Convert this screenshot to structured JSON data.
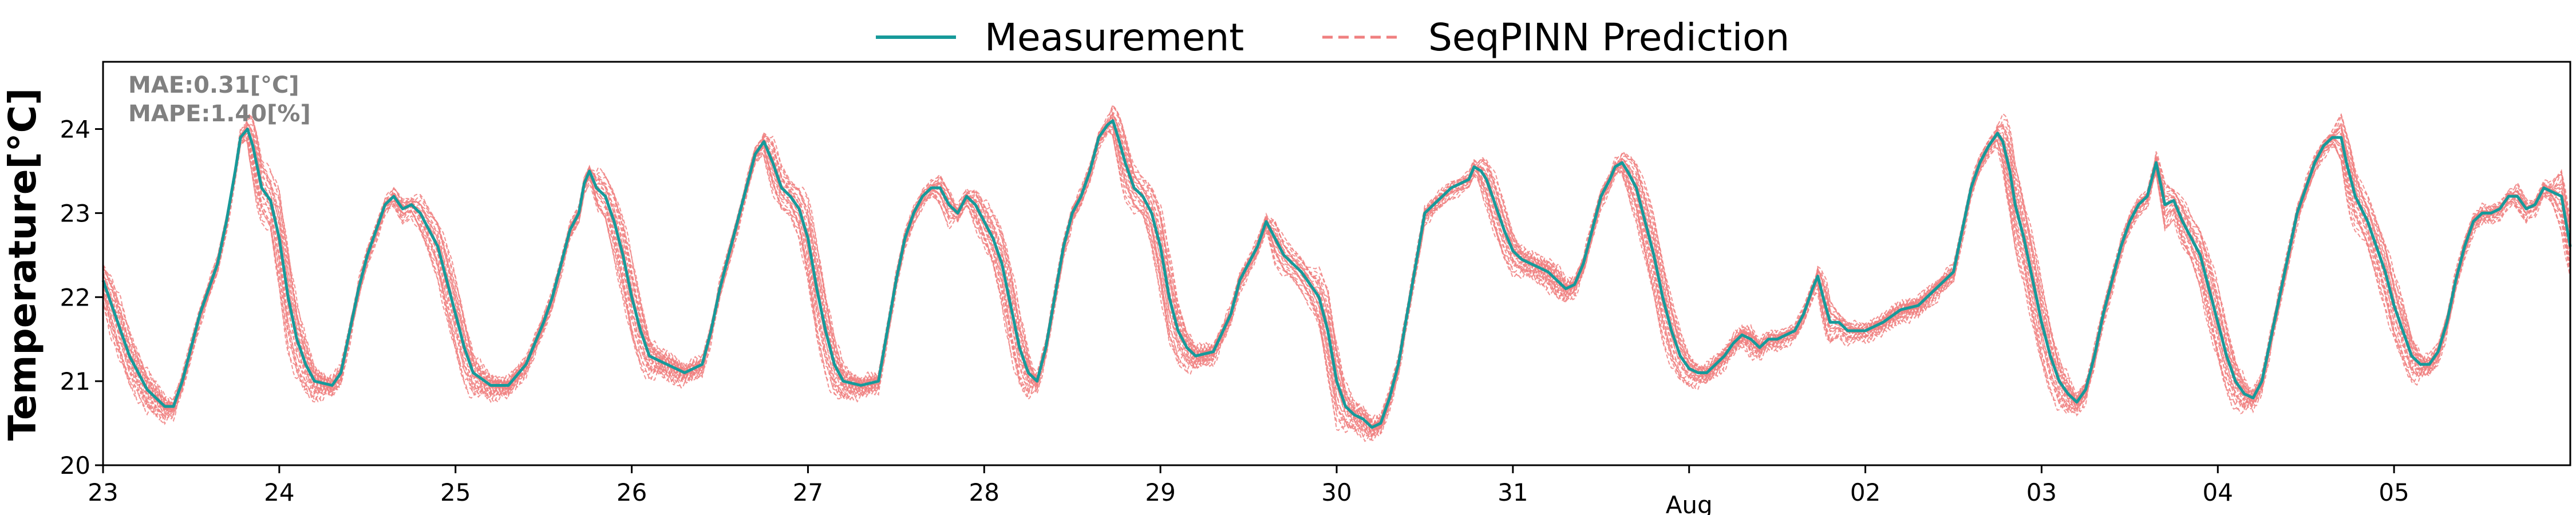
{
  "chart_data": {
    "type": "line",
    "ylabel": "Temperature[°C]",
    "ylim": [
      20,
      24.8
    ],
    "yticks": [
      20,
      21,
      22,
      23,
      24
    ],
    "xlim": [
      0,
      14
    ],
    "x_ticks": [
      {
        "pos": 0,
        "label": "23"
      },
      {
        "pos": 1,
        "label": "24"
      },
      {
        "pos": 2,
        "label": "25"
      },
      {
        "pos": 3,
        "label": "26"
      },
      {
        "pos": 4,
        "label": "27"
      },
      {
        "pos": 5,
        "label": "28"
      },
      {
        "pos": 6,
        "label": "29"
      },
      {
        "pos": 7,
        "label": "30"
      },
      {
        "pos": 8,
        "label": "31"
      },
      {
        "pos": 9,
        "label": "Aug"
      },
      {
        "pos": 10,
        "label": "02"
      },
      {
        "pos": 11,
        "label": "03"
      },
      {
        "pos": 12,
        "label": "04"
      },
      {
        "pos": 13,
        "label": "05"
      }
    ],
    "legend": {
      "placement": "top-center"
    },
    "annotations": {
      "mae": "MAE:0.31[°C]",
      "mape": "MAPE:1.40[%]"
    },
    "grid": false,
    "series": [
      {
        "name": "Measurement",
        "color": "#169a9a",
        "style": "solid",
        "points": [
          [
            0.0,
            22.2
          ],
          [
            0.05,
            21.9
          ],
          [
            0.15,
            21.3
          ],
          [
            0.25,
            20.9
          ],
          [
            0.35,
            20.7
          ],
          [
            0.4,
            20.7
          ],
          [
            0.45,
            21.0
          ],
          [
            0.5,
            21.4
          ],
          [
            0.55,
            21.8
          ],
          [
            0.6,
            22.1
          ],
          [
            0.65,
            22.4
          ],
          [
            0.7,
            22.9
          ],
          [
            0.75,
            23.5
          ],
          [
            0.78,
            23.9
          ],
          [
            0.82,
            24.0
          ],
          [
            0.85,
            23.8
          ],
          [
            0.9,
            23.3
          ],
          [
            0.95,
            23.15
          ],
          [
            1.0,
            22.7
          ],
          [
            1.05,
            22.0
          ],
          [
            1.1,
            21.5
          ],
          [
            1.15,
            21.2
          ],
          [
            1.2,
            21.0
          ],
          [
            1.3,
            20.95
          ],
          [
            1.35,
            21.1
          ],
          [
            1.4,
            21.6
          ],
          [
            1.45,
            22.1
          ],
          [
            1.5,
            22.5
          ],
          [
            1.55,
            22.8
          ],
          [
            1.6,
            23.1
          ],
          [
            1.65,
            23.2
          ],
          [
            1.7,
            23.05
          ],
          [
            1.75,
            23.1
          ],
          [
            1.8,
            23.0
          ],
          [
            1.85,
            22.8
          ],
          [
            1.9,
            22.6
          ],
          [
            1.95,
            22.2
          ],
          [
            2.0,
            21.8
          ],
          [
            2.05,
            21.4
          ],
          [
            2.1,
            21.1
          ],
          [
            2.2,
            20.95
          ],
          [
            2.3,
            20.95
          ],
          [
            2.4,
            21.2
          ],
          [
            2.5,
            21.7
          ],
          [
            2.55,
            22.0
          ],
          [
            2.6,
            22.4
          ],
          [
            2.65,
            22.8
          ],
          [
            2.7,
            23.0
          ],
          [
            2.73,
            23.35
          ],
          [
            2.76,
            23.5
          ],
          [
            2.8,
            23.3
          ],
          [
            2.85,
            23.2
          ],
          [
            2.9,
            22.9
          ],
          [
            2.95,
            22.5
          ],
          [
            3.0,
            22.0
          ],
          [
            3.05,
            21.6
          ],
          [
            3.1,
            21.3
          ],
          [
            3.2,
            21.2
          ],
          [
            3.3,
            21.1
          ],
          [
            3.4,
            21.2
          ],
          [
            3.45,
            21.6
          ],
          [
            3.5,
            22.1
          ],
          [
            3.55,
            22.5
          ],
          [
            3.6,
            22.9
          ],
          [
            3.65,
            23.3
          ],
          [
            3.7,
            23.7
          ],
          [
            3.75,
            23.85
          ],
          [
            3.8,
            23.6
          ],
          [
            3.85,
            23.3
          ],
          [
            3.9,
            23.2
          ],
          [
            3.95,
            23.05
          ],
          [
            4.0,
            22.7
          ],
          [
            4.05,
            22.1
          ],
          [
            4.1,
            21.6
          ],
          [
            4.15,
            21.2
          ],
          [
            4.2,
            21.0
          ],
          [
            4.3,
            20.95
          ],
          [
            4.4,
            21.0
          ],
          [
            4.45,
            21.6
          ],
          [
            4.5,
            22.2
          ],
          [
            4.55,
            22.7
          ],
          [
            4.6,
            23.0
          ],
          [
            4.65,
            23.2
          ],
          [
            4.7,
            23.3
          ],
          [
            4.75,
            23.3
          ],
          [
            4.8,
            23.1
          ],
          [
            4.85,
            23.0
          ],
          [
            4.9,
            23.2
          ],
          [
            4.95,
            23.1
          ],
          [
            5.0,
            22.9
          ],
          [
            5.05,
            22.7
          ],
          [
            5.1,
            22.4
          ],
          [
            5.15,
            21.9
          ],
          [
            5.2,
            21.4
          ],
          [
            5.25,
            21.1
          ],
          [
            5.3,
            21.0
          ],
          [
            5.35,
            21.4
          ],
          [
            5.4,
            22.0
          ],
          [
            5.45,
            22.6
          ],
          [
            5.5,
            23.0
          ],
          [
            5.55,
            23.2
          ],
          [
            5.6,
            23.5
          ],
          [
            5.65,
            23.9
          ],
          [
            5.7,
            24.05
          ],
          [
            5.73,
            24.1
          ],
          [
            5.76,
            23.9
          ],
          [
            5.8,
            23.6
          ],
          [
            5.85,
            23.3
          ],
          [
            5.9,
            23.2
          ],
          [
            5.95,
            23.0
          ],
          [
            6.0,
            22.6
          ],
          [
            6.05,
            22.0
          ],
          [
            6.1,
            21.6
          ],
          [
            6.15,
            21.4
          ],
          [
            6.2,
            21.3
          ],
          [
            6.3,
            21.35
          ],
          [
            6.4,
            21.8
          ],
          [
            6.45,
            22.2
          ],
          [
            6.5,
            22.4
          ],
          [
            6.55,
            22.6
          ],
          [
            6.6,
            22.9
          ],
          [
            6.65,
            22.7
          ],
          [
            6.7,
            22.5
          ],
          [
            6.75,
            22.4
          ],
          [
            6.8,
            22.3
          ],
          [
            6.9,
            22.0
          ],
          [
            6.95,
            21.6
          ],
          [
            7.0,
            21.0
          ],
          [
            7.05,
            20.7
          ],
          [
            7.1,
            20.6
          ],
          [
            7.15,
            20.55
          ],
          [
            7.2,
            20.45
          ],
          [
            7.25,
            20.5
          ],
          [
            7.3,
            20.8
          ],
          [
            7.35,
            21.2
          ],
          [
            7.4,
            21.8
          ],
          [
            7.45,
            22.4
          ],
          [
            7.5,
            23.0
          ],
          [
            7.55,
            23.1
          ],
          [
            7.6,
            23.2
          ],
          [
            7.65,
            23.3
          ],
          [
            7.7,
            23.35
          ],
          [
            7.75,
            23.4
          ],
          [
            7.78,
            23.55
          ],
          [
            7.82,
            23.5
          ],
          [
            7.85,
            23.4
          ],
          [
            7.9,
            23.1
          ],
          [
            7.95,
            22.8
          ],
          [
            8.0,
            22.55
          ],
          [
            8.05,
            22.45
          ],
          [
            8.1,
            22.4
          ],
          [
            8.15,
            22.35
          ],
          [
            8.2,
            22.3
          ],
          [
            8.25,
            22.2
          ],
          [
            8.3,
            22.1
          ],
          [
            8.35,
            22.15
          ],
          [
            8.4,
            22.4
          ],
          [
            8.45,
            22.8
          ],
          [
            8.5,
            23.2
          ],
          [
            8.55,
            23.4
          ],
          [
            8.58,
            23.55
          ],
          [
            8.62,
            23.6
          ],
          [
            8.65,
            23.5
          ],
          [
            8.7,
            23.3
          ],
          [
            8.75,
            22.9
          ],
          [
            8.8,
            22.5
          ],
          [
            8.85,
            22.0
          ],
          [
            8.9,
            21.6
          ],
          [
            8.95,
            21.3
          ],
          [
            9.0,
            21.15
          ],
          [
            9.05,
            21.1
          ],
          [
            9.1,
            21.1
          ],
          [
            9.15,
            21.2
          ],
          [
            9.2,
            21.3
          ],
          [
            9.25,
            21.45
          ],
          [
            9.3,
            21.55
          ],
          [
            9.35,
            21.5
          ],
          [
            9.4,
            21.4
          ],
          [
            9.45,
            21.5
          ],
          [
            9.5,
            21.5
          ],
          [
            9.55,
            21.55
          ],
          [
            9.6,
            21.6
          ],
          [
            9.65,
            21.8
          ],
          [
            9.7,
            22.1
          ],
          [
            9.73,
            22.25
          ],
          [
            9.76,
            22.0
          ],
          [
            9.8,
            21.7
          ],
          [
            9.85,
            21.7
          ],
          [
            9.9,
            21.6
          ],
          [
            10.0,
            21.6
          ],
          [
            10.1,
            21.7
          ],
          [
            10.2,
            21.85
          ],
          [
            10.3,
            21.9
          ],
          [
            10.4,
            22.1
          ],
          [
            10.5,
            22.3
          ],
          [
            10.55,
            22.8
          ],
          [
            10.6,
            23.3
          ],
          [
            10.65,
            23.6
          ],
          [
            10.7,
            23.8
          ],
          [
            10.75,
            23.95
          ],
          [
            10.78,
            23.85
          ],
          [
            10.82,
            23.5
          ],
          [
            10.85,
            23.1
          ],
          [
            10.9,
            22.7
          ],
          [
            10.95,
            22.2
          ],
          [
            11.0,
            21.7
          ],
          [
            11.05,
            21.3
          ],
          [
            11.1,
            21.0
          ],
          [
            11.15,
            20.85
          ],
          [
            11.2,
            20.75
          ],
          [
            11.25,
            20.9
          ],
          [
            11.3,
            21.3
          ],
          [
            11.35,
            21.8
          ],
          [
            11.4,
            22.2
          ],
          [
            11.45,
            22.6
          ],
          [
            11.5,
            22.9
          ],
          [
            11.55,
            23.1
          ],
          [
            11.6,
            23.2
          ],
          [
            11.65,
            23.6
          ],
          [
            11.68,
            23.3
          ],
          [
            11.7,
            23.1
          ],
          [
            11.75,
            23.15
          ],
          [
            11.8,
            22.9
          ],
          [
            11.85,
            22.7
          ],
          [
            11.9,
            22.5
          ],
          [
            11.95,
            22.1
          ],
          [
            12.0,
            21.7
          ],
          [
            12.05,
            21.3
          ],
          [
            12.1,
            21.0
          ],
          [
            12.15,
            20.85
          ],
          [
            12.2,
            20.8
          ],
          [
            12.25,
            21.0
          ],
          [
            12.3,
            21.5
          ],
          [
            12.35,
            22.0
          ],
          [
            12.4,
            22.5
          ],
          [
            12.45,
            23.0
          ],
          [
            12.5,
            23.3
          ],
          [
            12.55,
            23.6
          ],
          [
            12.6,
            23.8
          ],
          [
            12.65,
            23.9
          ],
          [
            12.7,
            23.9
          ],
          [
            12.73,
            23.6
          ],
          [
            12.78,
            23.2
          ],
          [
            12.85,
            22.9
          ],
          [
            12.9,
            22.6
          ],
          [
            12.95,
            22.3
          ],
          [
            13.0,
            21.9
          ],
          [
            13.05,
            21.6
          ],
          [
            13.1,
            21.3
          ],
          [
            13.15,
            21.2
          ],
          [
            13.2,
            21.2
          ],
          [
            13.25,
            21.35
          ],
          [
            13.3,
            21.7
          ],
          [
            13.35,
            22.2
          ],
          [
            13.4,
            22.6
          ],
          [
            13.45,
            22.9
          ],
          [
            13.5,
            23.0
          ],
          [
            13.55,
            23.0
          ],
          [
            13.6,
            23.05
          ],
          [
            13.65,
            23.2
          ],
          [
            13.7,
            23.2
          ],
          [
            13.75,
            23.05
          ],
          [
            13.8,
            23.1
          ],
          [
            13.85,
            23.3
          ],
          [
            13.9,
            23.25
          ],
          [
            13.95,
            23.2
          ],
          [
            14.0,
            22.6
          ]
        ]
      },
      {
        "name": "SeqPINN Prediction",
        "color": "#f08080",
        "style": "dashed"
      }
    ]
  }
}
